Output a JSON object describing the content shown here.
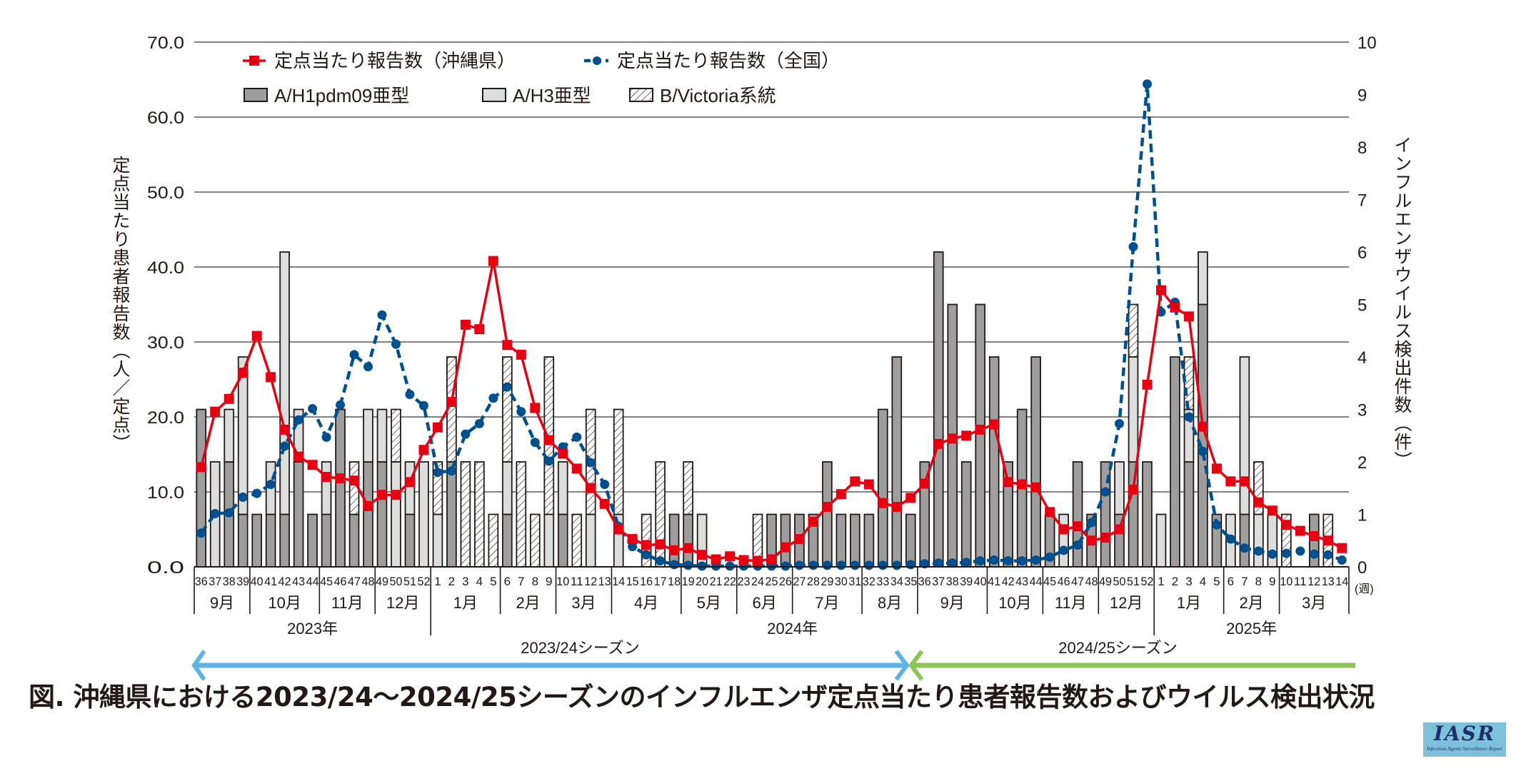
{
  "chart_data": {
    "type": "bar+line",
    "title": "図. 沖縄県における2023/24～2024/25シーズンのインフルエンザ定点当たり患者報告数およびウイルス検出状況",
    "ylabel_left": "定点当たり患者報告数（人／定点）",
    "ylabel_right": "インフルエンザウイルス検出件数（件）",
    "xlabel_unit": "(週)",
    "ylim_left": [
      0,
      70
    ],
    "yticks_left": [
      "0.0",
      "10.0",
      "20.0",
      "30.0",
      "40.0",
      "50.0",
      "60.0",
      "70.0"
    ],
    "ylim_right": [
      0,
      10
    ],
    "yticks_right": [
      "0",
      "1",
      "2",
      "3",
      "4",
      "5",
      "6",
      "7",
      "8",
      "9",
      "10"
    ],
    "grid": true,
    "legend": {
      "placement": "top-left",
      "items": [
        {
          "label": "定点当たり報告数（沖縄県）",
          "type": "line-square",
          "color": "#e60012"
        },
        {
          "label": "定点当たり報告数（全国）",
          "type": "dashed-circle",
          "color": "#00508f"
        },
        {
          "label": "A/H1pdm09亜型",
          "type": "bar",
          "color": "#9e9e9f"
        },
        {
          "label": "A/H3亜型",
          "type": "bar",
          "color": "#dcdddd"
        },
        {
          "label": "B/Victoria系統",
          "type": "bar-hatched",
          "color": "#ffffff"
        }
      ]
    },
    "weeks": [
      "36",
      "37",
      "38",
      "39",
      "40",
      "41",
      "42",
      "43",
      "44",
      "45",
      "46",
      "47",
      "48",
      "49",
      "50",
      "51",
      "52",
      "1",
      "2",
      "3",
      "4",
      "5",
      "6",
      "7",
      "8",
      "9",
      "10",
      "11",
      "12",
      "13",
      "14",
      "15",
      "16",
      "17",
      "18",
      "19",
      "20",
      "21",
      "22",
      "23",
      "24",
      "25",
      "26",
      "27",
      "28",
      "29",
      "30",
      "31",
      "32",
      "33",
      "34",
      "35",
      "36",
      "37",
      "38",
      "39",
      "40",
      "41",
      "42",
      "43",
      "44",
      "45",
      "46",
      "47",
      "48",
      "49",
      "50",
      "51",
      "52",
      "1",
      "2",
      "3",
      "4",
      "5",
      "6",
      "7",
      "8",
      "9",
      "10",
      "11",
      "12",
      "13",
      "14"
    ],
    "months": [
      {
        "label": "9月",
        "weeks": 4
      },
      {
        "label": "10月",
        "weeks": 5
      },
      {
        "label": "11月",
        "weeks": 4
      },
      {
        "label": "12月",
        "weeks": 4
      },
      {
        "label": "1月",
        "weeks": 5
      },
      {
        "label": "2月",
        "weeks": 4
      },
      {
        "label": "3月",
        "weeks": 4
      },
      {
        "label": "4月",
        "weeks": 5
      },
      {
        "label": "5月",
        "weeks": 4
      },
      {
        "label": "6月",
        "weeks": 4
      },
      {
        "label": "7月",
        "weeks": 5
      },
      {
        "label": "8月",
        "weeks": 4
      },
      {
        "label": "9月",
        "weeks": 5
      },
      {
        "label": "10月",
        "weeks": 4
      },
      {
        "label": "11月",
        "weeks": 4
      },
      {
        "label": "12月",
        "weeks": 4
      },
      {
        "label": "1月",
        "weeks": 5
      },
      {
        "label": "2月",
        "weeks": 4
      },
      {
        "label": "3月",
        "weeks": 5
      }
    ],
    "years": [
      {
        "label": "2023年",
        "weeks": 17
      },
      {
        "label": "2024年",
        "weeks": 52
      },
      {
        "label": "2025年",
        "weeks": 14
      }
    ],
    "seasons": [
      {
        "label": "2023/24シーズン",
        "color": "#5bb4e5"
      },
      {
        "label": "2024/25シーズン",
        "color": "#8dc556"
      }
    ],
    "series": [
      {
        "name": "定点当たり報告数（沖縄県）",
        "axis": "left",
        "values": [
          13.3,
          20.7,
          22.4,
          25.9,
          30.8,
          25.3,
          18.3,
          14.7,
          13.6,
          12.0,
          11.8,
          11.5,
          8.1,
          9.6,
          9.6,
          11.3,
          15.6,
          18.6,
          22.0,
          32.3,
          31.7,
          40.8,
          29.6,
          28.3,
          21.2,
          16.9,
          15.1,
          13.1,
          10.5,
          8.4,
          5.0,
          3.7,
          2.9,
          3.0,
          2.2,
          2.5,
          1.6,
          1.0,
          1.4,
          0.9,
          0.8,
          1.0,
          2.6,
          3.7,
          6.0,
          8.0,
          9.7,
          11.4,
          11.0,
          8.5,
          8.0,
          9.2,
          11.1,
          16.4,
          17.1,
          17.5,
          18.3,
          19.0,
          11.3,
          11.0,
          10.6,
          7.3,
          5.0,
          5.4,
          3.5,
          3.9,
          5.0,
          10.3,
          24.3,
          36.9,
          34.6,
          33.4,
          18.7,
          13.1,
          11.4,
          11.4,
          8.6,
          7.5,
          5.6,
          4.8,
          4.1,
          3.5,
          2.5
        ]
      },
      {
        "name": "定点当たり報告数（全国）",
        "axis": "left",
        "values": [
          4.5,
          7.1,
          7.2,
          9.3,
          9.8,
          11.0,
          16.1,
          19.6,
          21.1,
          17.3,
          21.6,
          28.3,
          26.7,
          33.6,
          29.7,
          23.0,
          21.5,
          12.6,
          12.8,
          17.7,
          19.1,
          22.5,
          24.0,
          20.7,
          16.6,
          14.1,
          16.0,
          17.3,
          13.9,
          11.0,
          5.4,
          2.7,
          1.6,
          0.8,
          0.3,
          0.2,
          0.1,
          0.1,
          0.1,
          0.1,
          0.1,
          0.1,
          0.1,
          0.2,
          0.2,
          0.2,
          0.2,
          0.2,
          0.2,
          0.2,
          0.2,
          0.3,
          0.4,
          0.5,
          0.5,
          0.6,
          0.8,
          0.9,
          0.8,
          0.8,
          0.9,
          1.3,
          2.2,
          2.9,
          5.9,
          10.0,
          19.1,
          42.7,
          64.4,
          34.0,
          35.3,
          20.0,
          15.4,
          5.6,
          3.7,
          2.5,
          2.1,
          1.7,
          1.8,
          2.1,
          1.7,
          1.6,
          0.9
        ]
      },
      {
        "name": "A/H1pdm09亜型",
        "axis": "right",
        "values": [
          3,
          0,
          2,
          1,
          1,
          1,
          1,
          2,
          1,
          1,
          3,
          1,
          2,
          2,
          0,
          1,
          0,
          0,
          2,
          0,
          0,
          0,
          1,
          0,
          0,
          0,
          1,
          0,
          0,
          0,
          0,
          0,
          0,
          0,
          1,
          1,
          0,
          0,
          0,
          0,
          0,
          1,
          1,
          1,
          1,
          2,
          1,
          1,
          1,
          3,
          4,
          1,
          2,
          6,
          5,
          2,
          5,
          4,
          2,
          3,
          4,
          1,
          0,
          2,
          1,
          2,
          1,
          2,
          2,
          0,
          4,
          2,
          5,
          1,
          0,
          1,
          0,
          0,
          0,
          0,
          1,
          0,
          0
        ]
      },
      {
        "name": "A/H3亜型",
        "axis": "right",
        "values": [
          0,
          2,
          1,
          3,
          0,
          1,
          5,
          1,
          0,
          1,
          0,
          0,
          1,
          1,
          2,
          1,
          2,
          1,
          0,
          0,
          0,
          0,
          1,
          0,
          0,
          1,
          1,
          0,
          1,
          0,
          1,
          0,
          0,
          0,
          0,
          0,
          1,
          0,
          0,
          0,
          0,
          0,
          0,
          0,
          0,
          0,
          0,
          0,
          0,
          0,
          0,
          0,
          0,
          0,
          0,
          0,
          0,
          0,
          0,
          0,
          0,
          0,
          1,
          0,
          0,
          0,
          1,
          2,
          0,
          1,
          0,
          1,
          1,
          0,
          1,
          3,
          1,
          1,
          0,
          0,
          0,
          0,
          0
        ]
      },
      {
        "name": "B/Victoria系統",
        "axis": "right",
        "values": [
          0,
          0,
          0,
          0,
          0,
          0,
          0,
          0,
          0,
          0,
          0,
          1,
          0,
          0,
          1,
          0,
          0,
          1,
          2,
          2,
          2,
          1,
          2,
          2,
          1,
          3,
          0,
          1,
          2,
          0,
          2,
          0,
          1,
          2,
          0,
          1,
          0,
          0,
          0,
          0,
          1,
          0,
          0,
          0,
          0,
          0,
          0,
          0,
          0,
          0,
          0,
          0,
          0,
          0,
          0,
          0,
          0,
          0,
          0,
          0,
          0,
          0,
          0,
          0,
          0,
          0,
          0,
          1,
          0,
          0,
          0,
          1,
          0,
          0,
          0,
          0,
          1,
          0,
          1,
          0,
          0,
          1,
          0
        ]
      }
    ]
  },
  "logo": {
    "name": "IASR",
    "subtitle": "Infectious Agents Surveillance Report"
  }
}
